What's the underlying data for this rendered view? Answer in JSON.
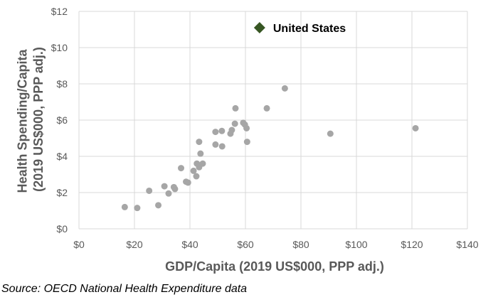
{
  "chart_data": {
    "type": "scatter",
    "xlabel": "GDP/Capita (2019 US$000, PPP adj.)",
    "ylabel": "Health Spending/Capita (2019 US$000, PPP adj.)",
    "xlim": [
      0,
      140
    ],
    "ylim": [
      0,
      12
    ],
    "x_ticks": [
      0,
      20,
      40,
      60,
      80,
      100,
      120,
      140
    ],
    "y_ticks": [
      0,
      2,
      4,
      6,
      8,
      10,
      12
    ],
    "x_tick_labels": [
      "$0",
      "$20",
      "$40",
      "$60",
      "$80",
      "$100",
      "$120",
      "$140"
    ],
    "y_tick_labels": [
      "$0",
      "$2",
      "$4",
      "$6",
      "$8",
      "$10",
      "$12"
    ],
    "grid": true,
    "colors": {
      "points": "#a6a6a6",
      "highlight": "#375623",
      "grid": "#d9d9d9",
      "text": "#595959"
    },
    "points": [
      {
        "x": 16.5,
        "y": 1.2
      },
      {
        "x": 21.0,
        "y": 1.15
      },
      {
        "x": 25.3,
        "y": 2.1
      },
      {
        "x": 28.6,
        "y": 1.3
      },
      {
        "x": 30.8,
        "y": 2.35
      },
      {
        "x": 32.3,
        "y": 1.95
      },
      {
        "x": 34.2,
        "y": 2.3
      },
      {
        "x": 34.6,
        "y": 2.2
      },
      {
        "x": 36.8,
        "y": 3.35
      },
      {
        "x": 38.6,
        "y": 2.6
      },
      {
        "x": 39.3,
        "y": 2.55
      },
      {
        "x": 41.3,
        "y": 3.2
      },
      {
        "x": 42.3,
        "y": 2.9
      },
      {
        "x": 42.5,
        "y": 3.6
      },
      {
        "x": 43.3,
        "y": 4.8
      },
      {
        "x": 43.3,
        "y": 3.4
      },
      {
        "x": 43.8,
        "y": 4.15
      },
      {
        "x": 44.6,
        "y": 3.6
      },
      {
        "x": 49.2,
        "y": 5.35
      },
      {
        "x": 49.2,
        "y": 4.65
      },
      {
        "x": 51.5,
        "y": 5.4
      },
      {
        "x": 51.6,
        "y": 4.55
      },
      {
        "x": 54.6,
        "y": 5.25
      },
      {
        "x": 55.1,
        "y": 5.45
      },
      {
        "x": 56.2,
        "y": 5.8
      },
      {
        "x": 56.4,
        "y": 6.65
      },
      {
        "x": 59.2,
        "y": 5.85
      },
      {
        "x": 59.8,
        "y": 5.75
      },
      {
        "x": 60.4,
        "y": 5.55
      },
      {
        "x": 60.6,
        "y": 4.8
      },
      {
        "x": 67.7,
        "y": 6.65
      },
      {
        "x": 74.2,
        "y": 7.75
      },
      {
        "x": 90.6,
        "y": 5.25
      },
      {
        "x": 121.3,
        "y": 5.55
      }
    ],
    "highlight": {
      "label": "United States",
      "x": 65.1,
      "y": 11.1
    }
  },
  "source_note": "Source: OECD National Health Expenditure data"
}
